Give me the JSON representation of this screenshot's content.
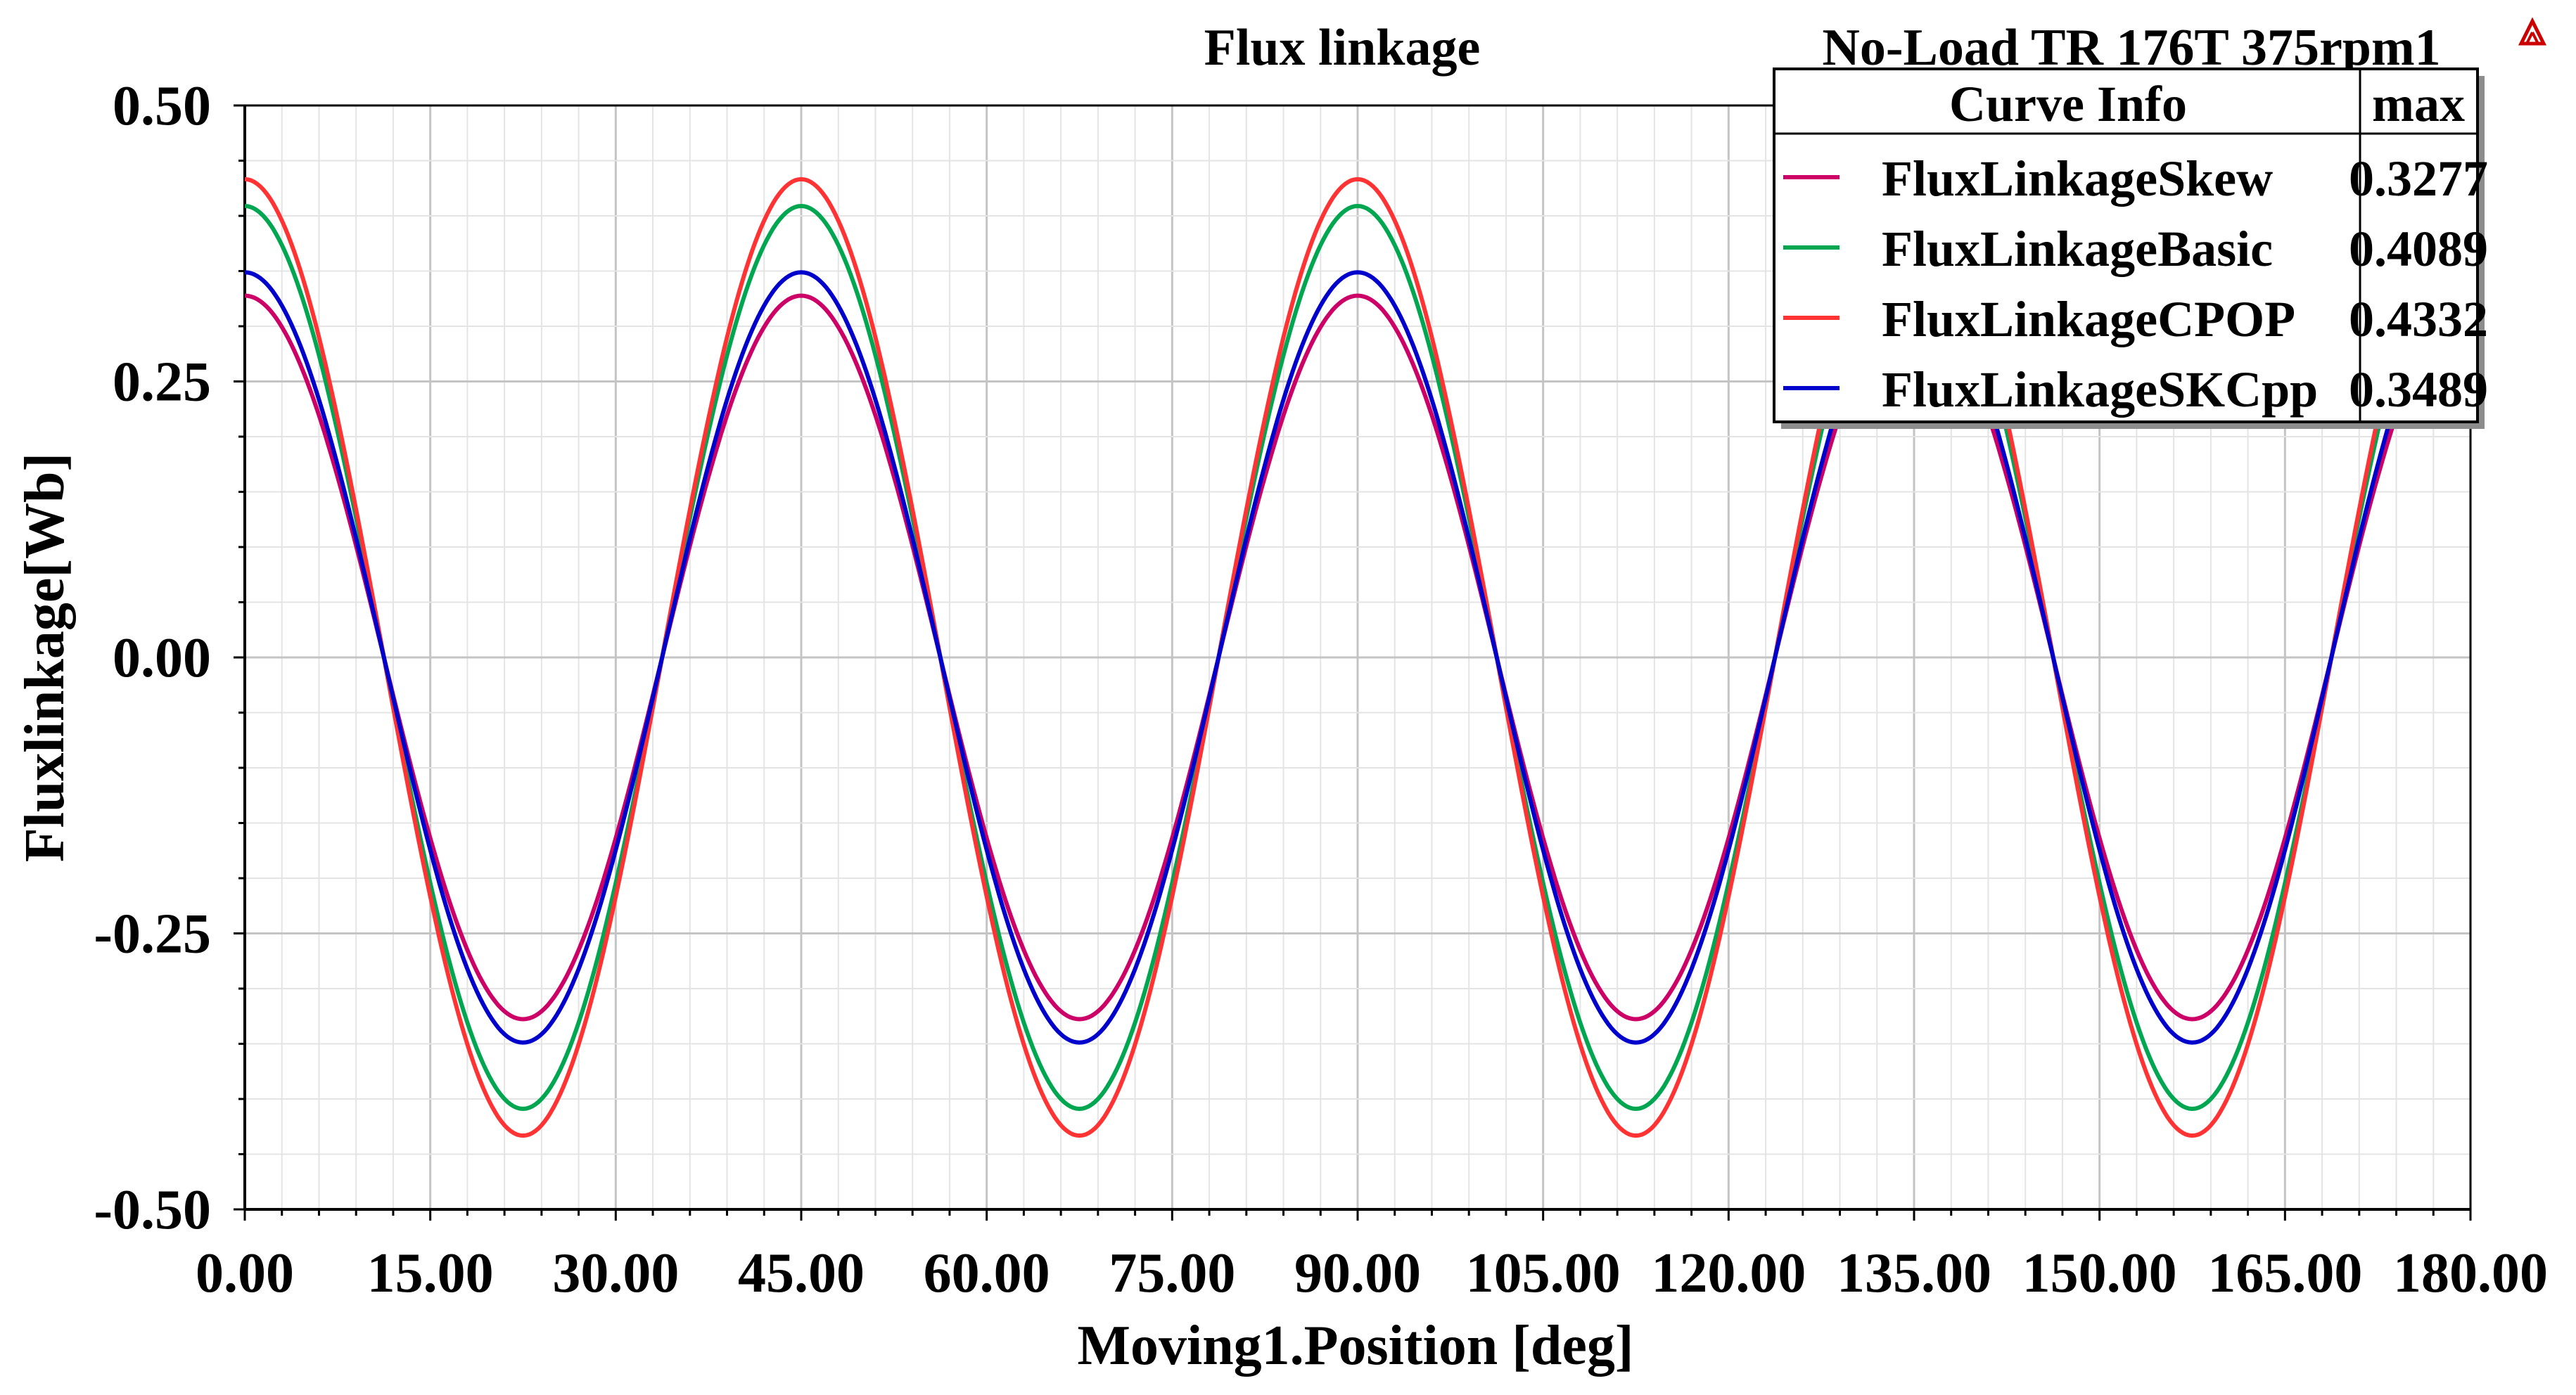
{
  "chart_data": {
    "type": "line",
    "title": "Flux linkage",
    "subtitle": "No-Load TR 176T 375rpm1",
    "xlabel": "Moving1.Position [deg]",
    "ylabel": "Fluxlinkage[Wb]",
    "xlim": [
      0,
      180
    ],
    "ylim": [
      -0.5,
      0.5
    ],
    "xticks": [
      "0.00",
      "15.00",
      "30.00",
      "45.00",
      "60.00",
      "75.00",
      "90.00",
      "105.00",
      "120.00",
      "135.00",
      "150.00",
      "165.00",
      "180.00"
    ],
    "yticks": [
      "0.50",
      "0.25",
      "0.00",
      "-0.25",
      "-0.50"
    ],
    "grid": true,
    "legend_position": "top-right",
    "legend": {
      "header_name": "Curve Info",
      "header_value": "max"
    },
    "period_deg": 45,
    "series": [
      {
        "name": "FluxLinkageSkew",
        "max_label": "0.3277",
        "amplitude": 0.3277,
        "color": "#cc0066"
      },
      {
        "name": "FluxLinkageBasic",
        "max_label": "0.4089",
        "amplitude": 0.4089,
        "color": "#00a650"
      },
      {
        "name": "FluxLinkageCPOP",
        "max_label": "0.4332",
        "amplitude": 0.4332,
        "color": "#ff3333"
      },
      {
        "name": "FluxLinkageSKCpp",
        "max_label": "0.3489",
        "amplitude": 0.3489,
        "color": "#0000cc"
      }
    ]
  },
  "logo_icon": "ansys-logo-icon"
}
